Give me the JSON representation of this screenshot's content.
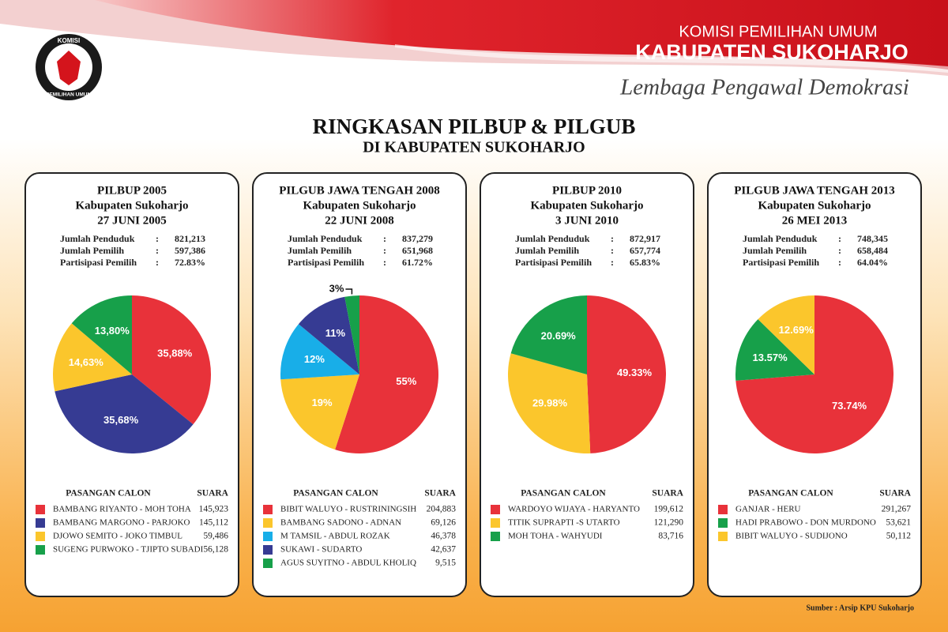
{
  "header": {
    "logo_top": "KOMISI",
    "logo_bottom": "PEMILIHAN UMUM",
    "org": "KOMISI PEMILIHAN UMUM",
    "region": "KABUPATEN SUKOHARJO",
    "motto": "Lembaga Pengawal Demokrasi"
  },
  "title": "RINGKASAN PILBUP & PILGUB",
  "subtitle": "DI KABUPATEN SUKOHARJO",
  "chart_data": [
    {
      "type": "pie",
      "title": "PILBUP 2005",
      "subtitle": "Kabupaten Sukoharjo",
      "date": "27 JUNI 2005",
      "stats": [
        {
          "label": "Jumlah Penduduk",
          "value": "821,213"
        },
        {
          "label": "Jumlah Pemilih",
          "value": "597,386"
        },
        {
          "label": "Partisipasi Pemilih",
          "value": "72.83%"
        }
      ],
      "categories": [
        "BAMBANG RIYANTO - MOH TOHA",
        "BAMBANG MARGONO - PARJOKO",
        "DJOWO SEMITO - JOKO TIMBUL",
        "SUGENG PURWOKO - TJIPTO SUBADI"
      ],
      "values": [
        35.88,
        35.68,
        14.63,
        13.8
      ],
      "value_labels": [
        "35,88%",
        "35,68%",
        "14,63%",
        "13,80%"
      ],
      "colors": [
        "#e8323a",
        "#363b93",
        "#fbc62c",
        "#17a04a"
      ],
      "table_headers": [
        "PASANGAN CALON",
        "SUARA"
      ],
      "votes": [
        "145,923",
        "145,112",
        "59,486",
        "56,128"
      ]
    },
    {
      "type": "pie",
      "title": "PILGUB JAWA TENGAH 2008",
      "subtitle": "Kabupaten Sukoharjo",
      "date": "22 JUNI 2008",
      "stats": [
        {
          "label": "Jumlah Penduduk",
          "value": "837,279"
        },
        {
          "label": "Jumlah Pemilih",
          "value": "651,968"
        },
        {
          "label": "Partisipasi Pemilih",
          "value": "61.72%"
        }
      ],
      "categories": [
        "BIBIT WALUYO - RUSTRININGSIH",
        "BAMBANG SADONO - ADNAN",
        "M TAMSIL - ABDUL ROZAK",
        "SUKAWI - SUDARTO",
        "AGUS SUYITNO - ABDUL KHOLIQ"
      ],
      "values": [
        55,
        19,
        12,
        11,
        3
      ],
      "value_labels": [
        "55%",
        "19%",
        "12%",
        "11%",
        "3%"
      ],
      "colors": [
        "#e8323a",
        "#fbc62c",
        "#18aee8",
        "#363b93",
        "#17a04a"
      ],
      "table_headers": [
        "PASANGAN CALON",
        "SUARA"
      ],
      "votes": [
        "204,883",
        "69,126",
        "46,378",
        "42,637",
        "9,515"
      ]
    },
    {
      "type": "pie",
      "title": "PILBUP 2010",
      "subtitle": "Kabupaten Sukoharjo",
      "date": "3 JUNI 2010",
      "stats": [
        {
          "label": "Jumlah Penduduk",
          "value": "872,917"
        },
        {
          "label": "Jumlah Pemilih",
          "value": "657,774"
        },
        {
          "label": "Partisipasi Pemilih",
          "value": "65.83%"
        }
      ],
      "categories": [
        "WARDOYO WIJAYA - HARYANTO",
        "TITIK SUPRAPTI -S UTARTO",
        "MOH TOHA - WAHYUDI"
      ],
      "values": [
        49.33,
        29.98,
        20.69
      ],
      "value_labels": [
        "49.33%",
        "29.98%",
        "20.69%"
      ],
      "colors": [
        "#e8323a",
        "#fbc62c",
        "#17a04a"
      ],
      "table_headers": [
        "PASANGAN CALON",
        "SUARA"
      ],
      "votes": [
        "199,612",
        "121,290",
        "83,716"
      ]
    },
    {
      "type": "pie",
      "title": "PILGUB JAWA TENGAH 2013",
      "subtitle": "Kabupaten Sukoharjo",
      "date": "26 MEI 2013",
      "stats": [
        {
          "label": "Jumlah Penduduk",
          "value": "748,345"
        },
        {
          "label": "Jumlah Pemilih",
          "value": "658,484"
        },
        {
          "label": "Partisipasi Pemilih",
          "value": "64.04%"
        }
      ],
      "categories": [
        "GANJAR - HERU",
        "HADI PRABOWO - DON MURDONO",
        "BIBIT WALUYO - SUDIJONO"
      ],
      "values": [
        73.74,
        13.57,
        12.69
      ],
      "value_labels": [
        "73.74%",
        "13.57%",
        "12.69%"
      ],
      "colors": [
        "#e8323a",
        "#17a04a",
        "#fbc62c"
      ],
      "table_headers": [
        "PASANGAN CALON",
        "SUARA"
      ],
      "votes": [
        "291,267",
        "53,621",
        "50,112"
      ]
    }
  ],
  "source": "Sumber : Arsip KPU Sukoharjo"
}
